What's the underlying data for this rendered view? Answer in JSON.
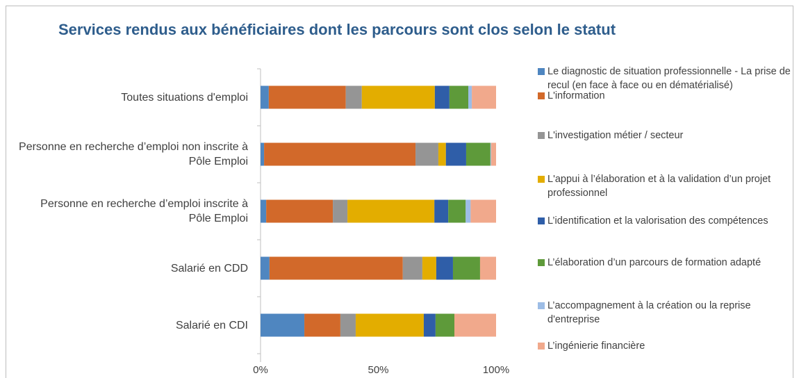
{
  "chart_data": {
    "type": "stacked_bar_horizontal",
    "title": "Services rendus aux bénéficiaires dont les parcours sont clos selon le statut",
    "categories": [
      "Toutes situations d'emploi",
      "Personne en recherche d’emploi non inscrite à Pôle Emploi",
      "Personne en recherche d’emploi inscrite à Pôle Emploi",
      "Salarié en CDD",
      "Salarié en CDI"
    ],
    "series": [
      {
        "name": "Le diagnostic de situation professionnelle - La prise de recul (en face à face ou en dématérialisé)",
        "color": "#4f86c0",
        "values": [
          3.5,
          1.5,
          2.4,
          3.8,
          18.6
        ]
      },
      {
        "name": "L'information",
        "color": "#d2692a",
        "values": [
          32.7,
          64.3,
          28.3,
          56.6,
          15.3
        ]
      },
      {
        "name": "L'investigation métier / secteur",
        "color": "#959595",
        "values": [
          6.8,
          9.7,
          6.2,
          8.3,
          6.5
        ]
      },
      {
        "name": "L'appui à l’élaboration et à la validation d’un projet professionnel",
        "color": "#e3ad00",
        "values": [
          31,
          3.2,
          36.9,
          5.9,
          28.9
        ]
      },
      {
        "name": "L’identification et la valorisation des compétences",
        "color": "#2f5ea8",
        "values": [
          6.2,
          8.6,
          5.9,
          7.1,
          5
        ]
      },
      {
        "name": "L’élaboration d’un parcours de formation adapté",
        "color": "#5e9a3a",
        "values": [
          8,
          10.3,
          7.4,
          11.5,
          8
        ]
      },
      {
        "name": "L’accompagnement à la création ou la reprise d'entreprise",
        "color": "#9dbde6",
        "values": [
          1.5,
          0.3,
          2.1,
          0,
          0
        ]
      },
      {
        "name": "L’ingénierie financière",
        "color": "#f1a98c",
        "values": [
          10.3,
          2.1,
          10.8,
          6.8,
          17.7
        ]
      }
    ],
    "xlim": [
      0,
      100
    ],
    "xticks": [
      {
        "value": 0,
        "label": "0%"
      },
      {
        "value": 50,
        "label": "50%"
      },
      {
        "value": 100,
        "label": "100%"
      }
    ],
    "legend": "right"
  }
}
